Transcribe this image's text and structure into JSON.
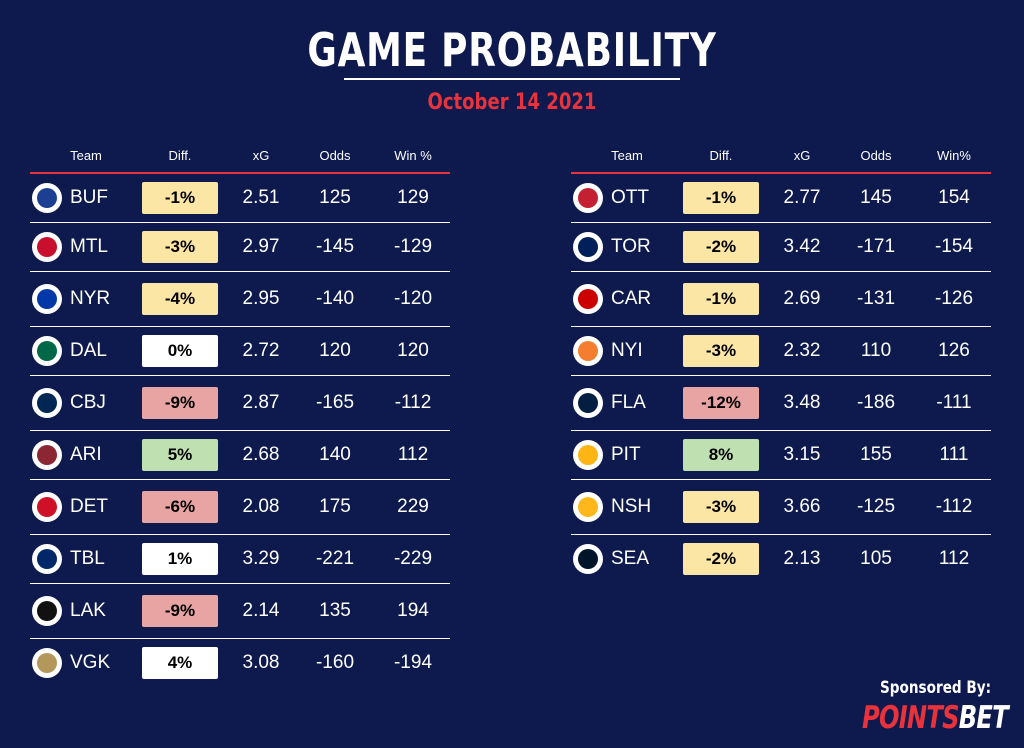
{
  "title": "GAME PROBABILITY",
  "date": "October 14 2021",
  "colors": {
    "background": "#0e1a4e",
    "accent": "#e8323c",
    "yellow": "#fbe6a6",
    "red": "#e8a3a3",
    "green": "#bfe0b0",
    "white": "#ffffff"
  },
  "left": {
    "headers": {
      "team": "Team",
      "diff": "Diff.",
      "xg": "xG",
      "odds": "Odds",
      "win": "Win %"
    },
    "rows": [
      {
        "team": "BUF",
        "diff": "-1%",
        "diff_color": "yellow",
        "xg": "2.51",
        "odds": "125",
        "win": "129",
        "logo_color": "#1c3f94"
      },
      {
        "team": "MTL",
        "diff": "-3%",
        "diff_color": "yellow",
        "xg": "2.97",
        "odds": "-145",
        "win": "-129",
        "logo_color": "#c8102e"
      },
      {
        "team": "NYR",
        "diff": "-4%",
        "diff_color": "yellow",
        "xg": "2.95",
        "odds": "-140",
        "win": "-120",
        "logo_color": "#0038a8"
      },
      {
        "team": "DAL",
        "diff": "0%",
        "diff_color": "white",
        "xg": "2.72",
        "odds": "120",
        "win": "120",
        "logo_color": "#006847"
      },
      {
        "team": "CBJ",
        "diff": "-9%",
        "diff_color": "red",
        "xg": "2.87",
        "odds": "-165",
        "win": "-112",
        "logo_color": "#002654"
      },
      {
        "team": "ARI",
        "diff": "5%",
        "diff_color": "green",
        "xg": "2.68",
        "odds": "140",
        "win": "112",
        "logo_color": "#8c2633"
      },
      {
        "team": "DET",
        "diff": "-6%",
        "diff_color": "red",
        "xg": "2.08",
        "odds": "175",
        "win": "229",
        "logo_color": "#ce1126"
      },
      {
        "team": "TBL",
        "diff": "1%",
        "diff_color": "white",
        "xg": "3.29",
        "odds": "-221",
        "win": "-229",
        "logo_color": "#002868"
      },
      {
        "team": "LAK",
        "diff": "-9%",
        "diff_color": "red",
        "xg": "2.14",
        "odds": "135",
        "win": "194",
        "logo_color": "#111111"
      },
      {
        "team": "VGK",
        "diff": "4%",
        "diff_color": "white",
        "xg": "3.08",
        "odds": "-160",
        "win": "-194",
        "logo_color": "#b4975a"
      }
    ]
  },
  "right": {
    "headers": {
      "team": "Team",
      "diff": "Diff.",
      "xg": "xG",
      "odds": "Odds",
      "win": "Win%"
    },
    "rows": [
      {
        "team": "OTT",
        "diff": "-1%",
        "diff_color": "yellow",
        "xg": "2.77",
        "odds": "145",
        "win": "154",
        "logo_color": "#c52032"
      },
      {
        "team": "TOR",
        "diff": "-2%",
        "diff_color": "yellow",
        "xg": "3.42",
        "odds": "-171",
        "win": "-154",
        "logo_color": "#00205b"
      },
      {
        "team": "CAR",
        "diff": "-1%",
        "diff_color": "yellow",
        "xg": "2.69",
        "odds": "-131",
        "win": "-126",
        "logo_color": "#cc0000"
      },
      {
        "team": "NYI",
        "diff": "-3%",
        "diff_color": "yellow",
        "xg": "2.32",
        "odds": "110",
        "win": "126",
        "logo_color": "#f47d30"
      },
      {
        "team": "FLA",
        "diff": "-12%",
        "diff_color": "red",
        "xg": "3.48",
        "odds": "-186",
        "win": "-111",
        "logo_color": "#041e42"
      },
      {
        "team": "PIT",
        "diff": "8%",
        "diff_color": "green",
        "xg": "3.15",
        "odds": "155",
        "win": "111",
        "logo_color": "#fcb514"
      },
      {
        "team": "NSH",
        "diff": "-3%",
        "diff_color": "yellow",
        "xg": "3.66",
        "odds": "-125",
        "win": "-112",
        "logo_color": "#ffb81c"
      },
      {
        "team": "SEA",
        "diff": "-2%",
        "diff_color": "yellow",
        "xg": "2.13",
        "odds": "105",
        "win": "112",
        "logo_color": "#001628"
      }
    ]
  },
  "sponsor": {
    "label": "Sponsored By:",
    "brand_part1": "POINTS",
    "brand_part2": "BET"
  }
}
